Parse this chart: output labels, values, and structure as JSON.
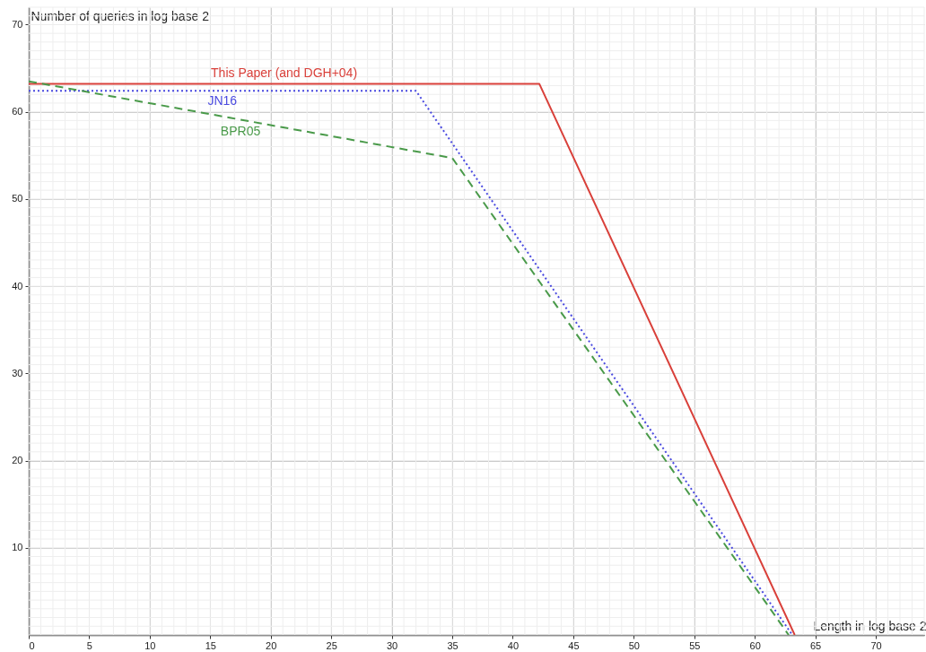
{
  "chart_data": {
    "type": "line",
    "xlabel": "Length in log base 2",
    "ylabel": "Number of queries in log base 2",
    "xlim": [
      0,
      74
    ],
    "ylim": [
      0,
      72
    ],
    "xticks": [
      0,
      5,
      10,
      15,
      20,
      25,
      30,
      35,
      40,
      45,
      50,
      55,
      60,
      65,
      70
    ],
    "yticks": [
      10,
      20,
      30,
      40,
      50,
      60,
      70
    ],
    "grid": true,
    "marker": "none",
    "series": [
      {
        "name": "This Paper (and DGH+04)",
        "color": "#d9403a",
        "line_style": "solid",
        "x": [
          0,
          42.2,
          63.3
        ],
        "values": [
          63.2,
          63.2,
          0
        ]
      },
      {
        "name": "JN16",
        "color": "#4a4ae0",
        "line_style": "dotted",
        "x": [
          0,
          32,
          63.1
        ],
        "values": [
          62.4,
          62.4,
          0
        ]
      },
      {
        "name": "BPR05",
        "color": "#4a9a4a",
        "line_style": "dashed",
        "x": [
          0,
          35,
          62.8
        ],
        "values": [
          63.5,
          54.7,
          0
        ]
      }
    ]
  }
}
